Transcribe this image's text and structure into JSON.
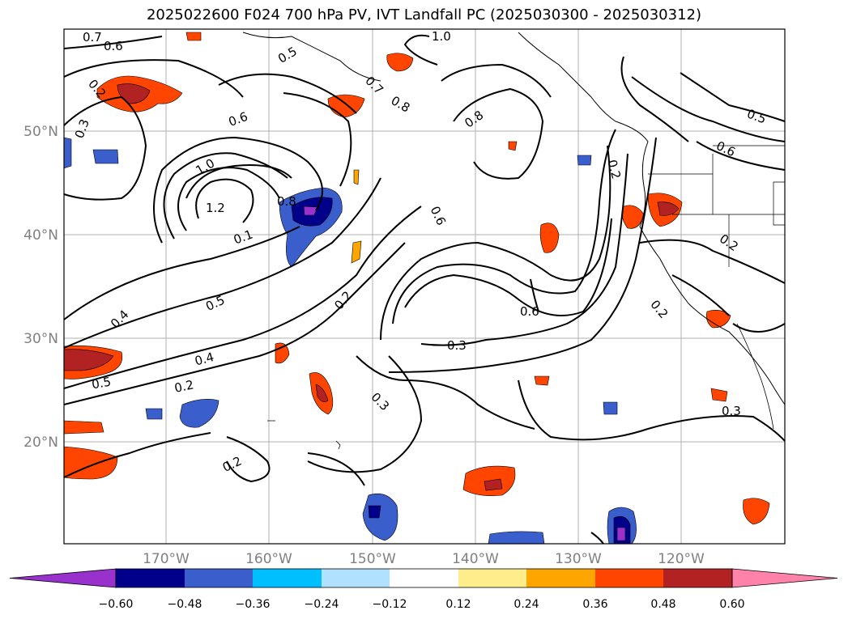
{
  "title": "2025022600 F024 700 hPa PV, IVT Landfall PC (2025030300 - 2025030312)",
  "lat_labels": [
    "50°N",
    "40°N",
    "30°N",
    "20°N"
  ],
  "lon_labels": [
    "170°W",
    "160°W",
    "150°W",
    "140°W",
    "130°W",
    "120°W"
  ],
  "contour_labels": [
    "0.7",
    "0.6",
    "1.0",
    "0.5",
    "0.7",
    "0.8",
    "0.8",
    "0.2",
    "0.3",
    "0.6",
    "1.0",
    "1.2",
    "0.8",
    "0.1",
    "0.6",
    "0.5",
    "0.4",
    "0.2",
    "0.4",
    "0.5",
    "0.2",
    "0.3",
    "0.6",
    "0.3",
    "0.2",
    "0.2",
    "0.6",
    "0.2",
    "0.3",
    "0.5",
    "0.2"
  ],
  "colorbar": {
    "ticks": [
      "−0.60",
      "−0.48",
      "−0.36",
      "−0.24",
      "−0.12",
      "0.12",
      "0.24",
      "0.36",
      "0.48",
      "0.60"
    ],
    "colors": [
      "#9932cc",
      "#00008b",
      "#3a5fcd",
      "#00bfff",
      "#b0e2ff",
      "#ffffff",
      "#ffec8b",
      "#ffa500",
      "#ff4500",
      "#b22222",
      "#ff82ab"
    ]
  }
}
